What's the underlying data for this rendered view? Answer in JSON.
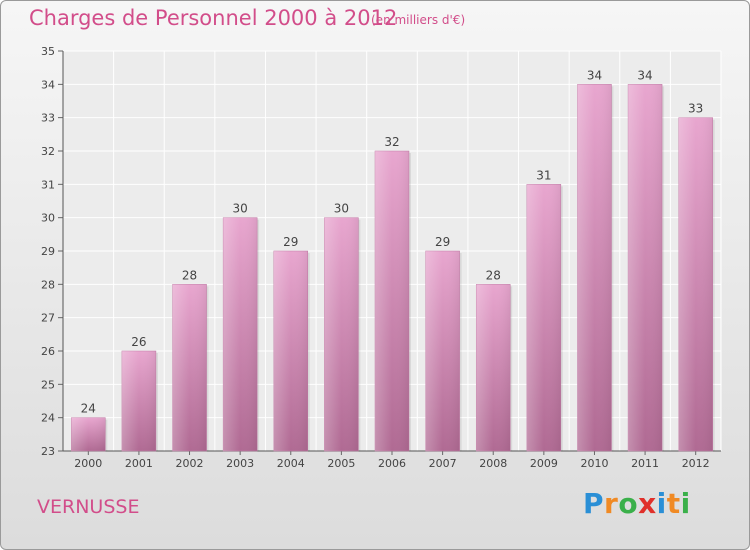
{
  "header": {
    "title": "Charges de Personnel 2000 à 2012",
    "unit": "(en milliers d'€)"
  },
  "footer": {
    "place": "VERNUSSE",
    "logo": {
      "letters": [
        "P",
        "r",
        "o",
        "x",
        "i",
        "t",
        "i"
      ],
      "colors": [
        "#2a8fd6",
        "#f08a24",
        "#3ab04a",
        "#e0302a",
        "#2a8fd6",
        "#f08a24",
        "#3ab04a"
      ]
    }
  },
  "chart_data": {
    "type": "bar",
    "title": "Charges de Personnel 2000 à 2012",
    "subtitle": "(en milliers d'€)",
    "categories": [
      "2000",
      "2001",
      "2002",
      "2003",
      "2004",
      "2005",
      "2006",
      "2007",
      "2008",
      "2009",
      "2010",
      "2011",
      "2012"
    ],
    "values": [
      24,
      26,
      28,
      30,
      29,
      30,
      32,
      29,
      28,
      31,
      34,
      34,
      33
    ],
    "ylim": [
      23,
      35
    ],
    "yticks": [
      23,
      24,
      25,
      26,
      27,
      28,
      29,
      30,
      31,
      32,
      33,
      34,
      35
    ],
    "grid": true,
    "bar_color": "#d98bb6"
  }
}
